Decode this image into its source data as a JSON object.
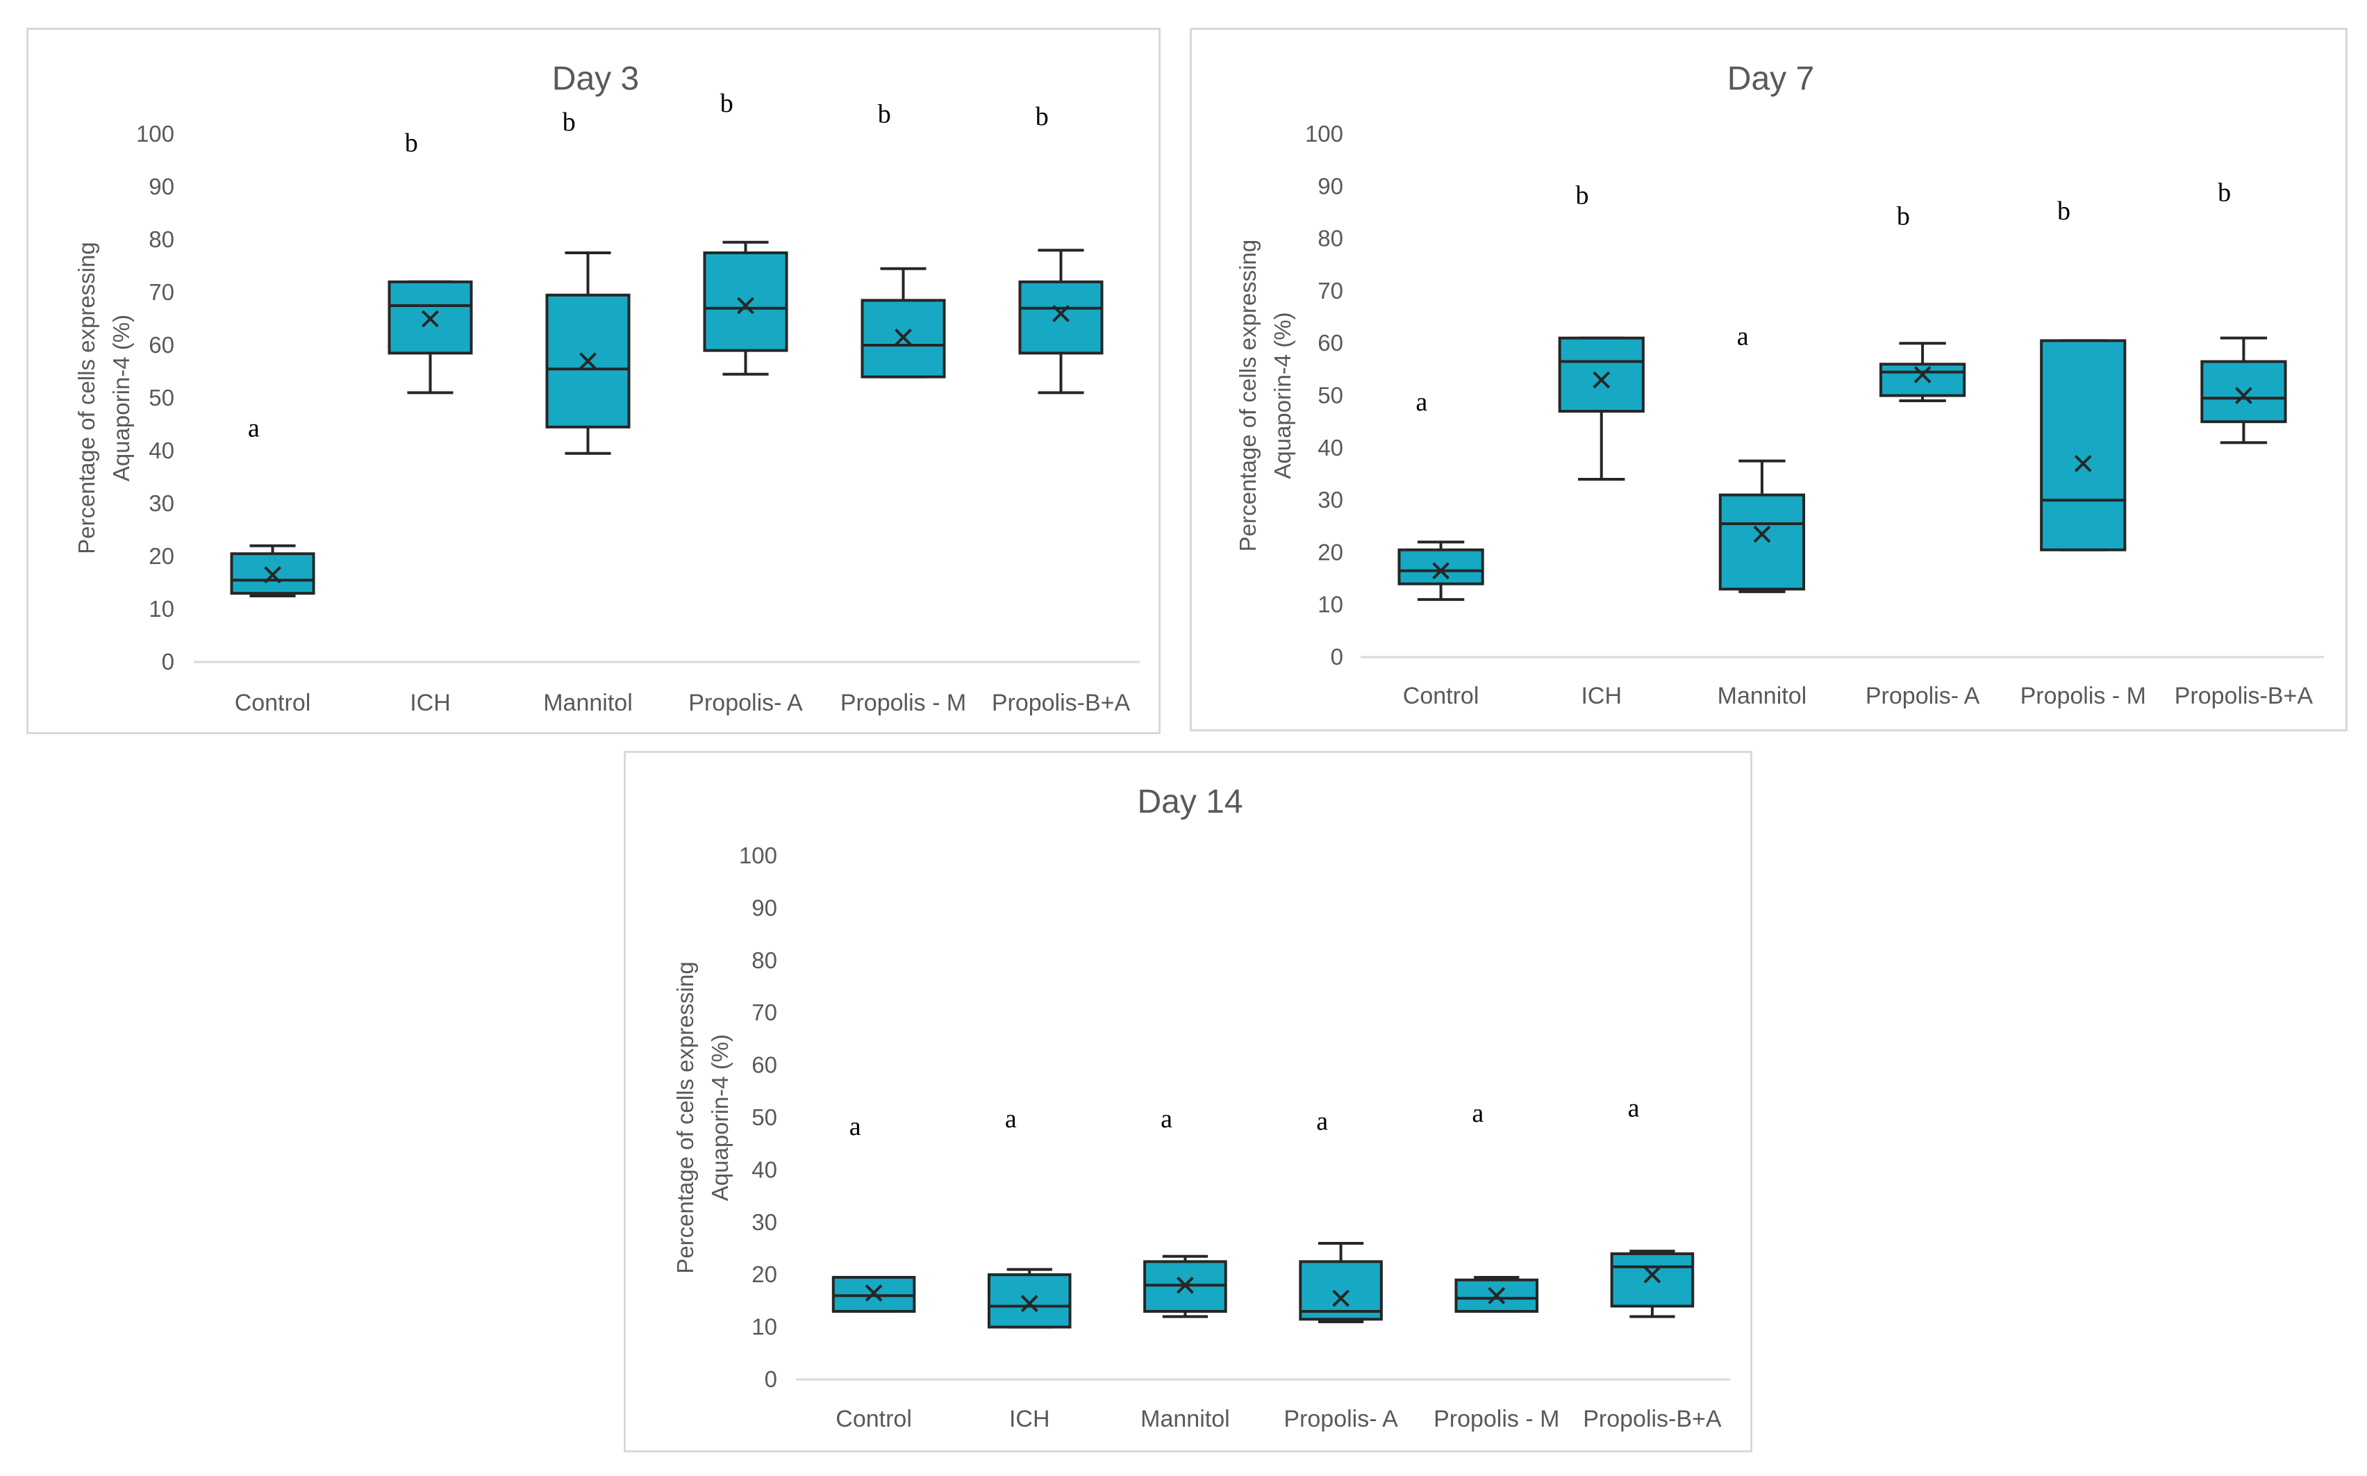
{
  "chart_data": [
    {
      "type": "boxplot",
      "title": "Day 3",
      "ylabel": [
        "Percentage of cells expressing",
        "Aquaporin-4 (%)"
      ],
      "ylim": [
        0,
        100
      ],
      "yticks": [
        0,
        10,
        20,
        30,
        40,
        50,
        60,
        70,
        80,
        90,
        100
      ],
      "categories": [
        "Control",
        "ICH",
        "Mannitol",
        "Propolis- A",
        "Propolis - M",
        "Propolis-B+A"
      ],
      "box_color": "#17A9C4",
      "boxes": [
        {
          "min": 12.5,
          "q1": 13,
          "median": 15.5,
          "q3": 20.5,
          "max": 22,
          "mean": 16.5
        },
        {
          "min": 51,
          "q1": 58.5,
          "median": 67.5,
          "q3": 72,
          "max": 72,
          "mean": 65
        },
        {
          "min": 39.5,
          "q1": 44.5,
          "median": 55.5,
          "q3": 69.5,
          "max": 77.5,
          "mean": 57
        },
        {
          "min": 54.5,
          "q1": 59,
          "median": 67,
          "q3": 77.5,
          "max": 79.5,
          "mean": 67.5
        },
        {
          "min": 54,
          "q1": 54,
          "median": 60,
          "q3": 68.5,
          "max": 74.5,
          "mean": 61.5
        },
        {
          "min": 51,
          "q1": 58.5,
          "median": 67,
          "q3": 72,
          "max": 78,
          "mean": 66
        }
      ],
      "significance": [
        "a",
        "b",
        "b",
        "b",
        "b",
        "b"
      ],
      "significance_y": [
        44,
        98,
        102,
        105.5,
        103.5,
        103
      ]
    },
    {
      "type": "boxplot",
      "title": "Day 7",
      "ylabel": [
        "Percentage of cells expressing",
        "Aquaporin-4 (%)"
      ],
      "ylim": [
        0,
        100
      ],
      "yticks": [
        0,
        10,
        20,
        30,
        40,
        50,
        60,
        70,
        80,
        90,
        100
      ],
      "categories": [
        "Control",
        "ICH",
        "Mannitol",
        "Propolis- A",
        "Propolis - M",
        "Propolis-B+A"
      ],
      "box_color": "#17A9C4",
      "boxes": [
        {
          "min": 11,
          "q1": 14,
          "median": 16.5,
          "q3": 20.5,
          "max": 22,
          "mean": 16.5
        },
        {
          "min": 34,
          "q1": 47,
          "median": 56.5,
          "q3": 61,
          "max": 61,
          "mean": 53
        },
        {
          "min": 12.5,
          "q1": 13,
          "median": 25.5,
          "q3": 31,
          "max": 37.5,
          "mean": 23.5
        },
        {
          "min": 49,
          "q1": 50,
          "median": 54.5,
          "q3": 56,
          "max": 60,
          "mean": 54
        },
        {
          "min": 20.5,
          "q1": 20.5,
          "median": 30,
          "q3": 60.5,
          "max": 60.5,
          "mean": 37
        },
        {
          "min": 41,
          "q1": 45,
          "median": 49.5,
          "q3": 56.5,
          "max": 61,
          "mean": 50
        }
      ],
      "significance": [
        "a",
        "b",
        "a",
        "b",
        "b",
        "b"
      ],
      "significance_y": [
        48.5,
        88,
        61,
        84,
        85,
        88.5
      ]
    },
    {
      "type": "boxplot",
      "title": "Day 14",
      "ylabel": [
        "Percentage of cells expressing",
        "Aquaporin-4 (%)"
      ],
      "ylim": [
        0,
        100
      ],
      "yticks": [
        0,
        10,
        20,
        30,
        40,
        50,
        60,
        70,
        80,
        90,
        100
      ],
      "categories": [
        "Control",
        "ICH",
        "Mannitol",
        "Propolis- A",
        "Propolis - M",
        "Propolis-B+A"
      ],
      "box_color": "#17A9C4",
      "boxes": [
        {
          "min": 13,
          "q1": 13,
          "median": 16,
          "q3": 19.5,
          "max": 19.5,
          "mean": 16.5
        },
        {
          "min": 10,
          "q1": 10,
          "median": 14,
          "q3": 20,
          "max": 21,
          "mean": 14.5
        },
        {
          "min": 12,
          "q1": 13,
          "median": 18,
          "q3": 22.5,
          "max": 23.5,
          "mean": 18
        },
        {
          "min": 11,
          "q1": 11.5,
          "median": 13,
          "q3": 22.5,
          "max": 26,
          "mean": 15.5
        },
        {
          "min": 13,
          "q1": 13,
          "median": 15.5,
          "q3": 19,
          "max": 19.5,
          "mean": 16
        },
        {
          "min": 12,
          "q1": 14,
          "median": 21.5,
          "q3": 24,
          "max": 24.5,
          "mean": 20
        }
      ],
      "significance": [
        "a",
        "a",
        "a",
        "a",
        "a",
        "a"
      ],
      "significance_y": [
        48,
        49.5,
        49.5,
        49,
        50.5,
        51.5
      ]
    }
  ]
}
